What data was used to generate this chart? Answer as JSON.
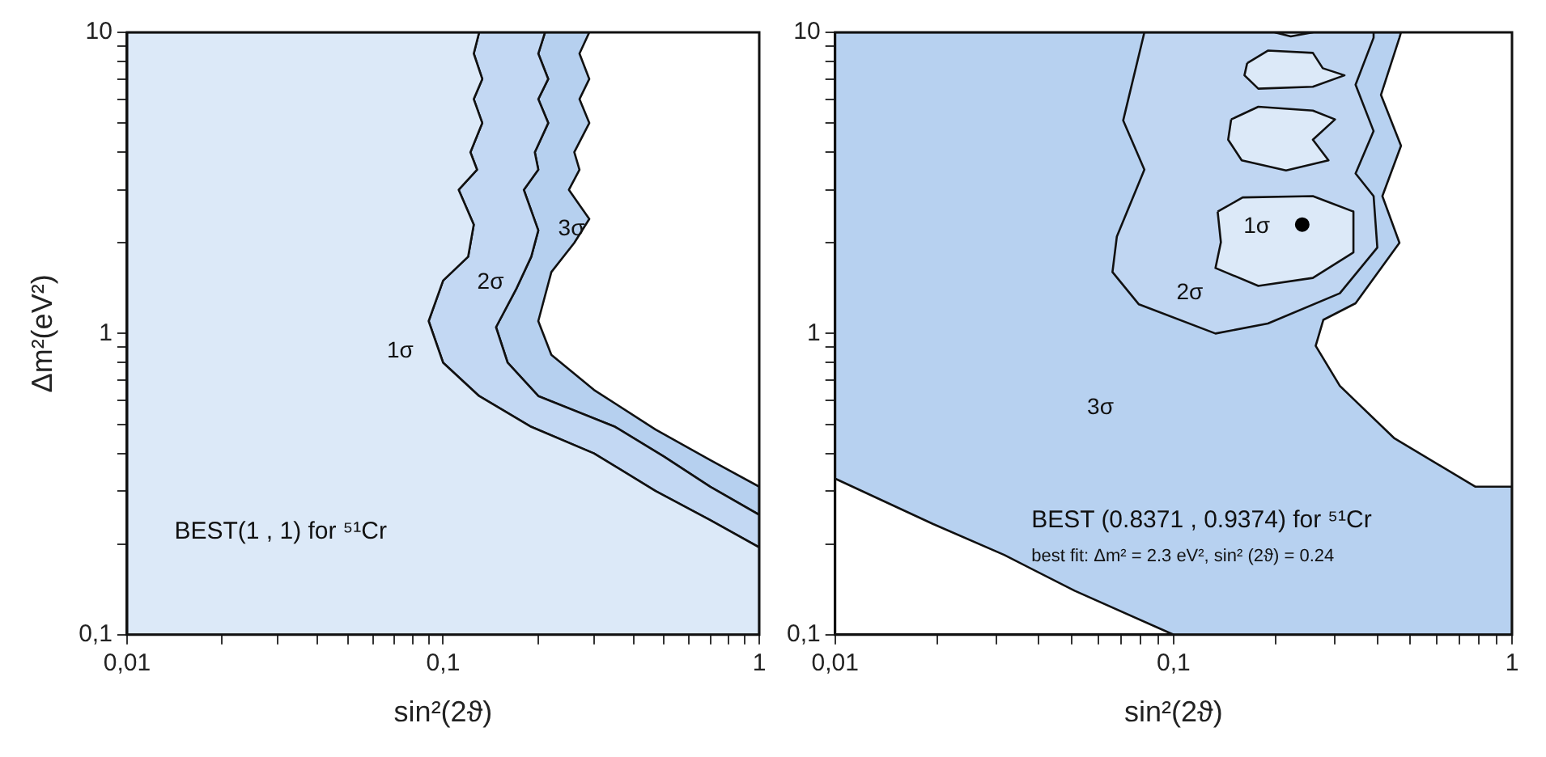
{
  "chart_data": [
    {
      "type": "area",
      "xlabel": "sin²(2ϑ)",
      "ylabel": "Δm²(eV²)",
      "log": "xy",
      "xlim": [
        0.01,
        1
      ],
      "ylim": [
        0.1,
        10
      ],
      "xticks": [
        {
          "value": 0.01,
          "label": "0,01"
        },
        {
          "value": 0.02,
          "label": null
        },
        {
          "value": 0.03,
          "label": null
        },
        {
          "value": 0.04,
          "label": null
        },
        {
          "value": 0.05,
          "label": null
        },
        {
          "value": 0.06,
          "label": null
        },
        {
          "value": 0.07,
          "label": null
        },
        {
          "value": 0.08,
          "label": null
        },
        {
          "value": 0.09,
          "label": null
        },
        {
          "value": 0.1,
          "label": "0,1"
        },
        {
          "value": 0.2,
          "label": null
        },
        {
          "value": 0.3,
          "label": null
        },
        {
          "value": 0.4,
          "label": null
        },
        {
          "value": 0.5,
          "label": null
        },
        {
          "value": 0.6,
          "label": null
        },
        {
          "value": 0.7,
          "label": null
        },
        {
          "value": 0.8,
          "label": null
        },
        {
          "value": 0.9,
          "label": null
        },
        {
          "value": 1,
          "label": "1"
        }
      ],
      "yticks": [
        {
          "value": 0.1,
          "label": "0,1"
        },
        {
          "value": 0.2,
          "label": null
        },
        {
          "value": 0.3,
          "label": null
        },
        {
          "value": 0.4,
          "label": null
        },
        {
          "value": 0.5,
          "label": null
        },
        {
          "value": 0.6,
          "label": null
        },
        {
          "value": 0.7,
          "label": null
        },
        {
          "value": 0.8,
          "label": null
        },
        {
          "value": 0.9,
          "label": null
        },
        {
          "value": 1,
          "label": "1"
        },
        {
          "value": 2,
          "label": null
        },
        {
          "value": 3,
          "label": null
        },
        {
          "value": 4,
          "label": null
        },
        {
          "value": 5,
          "label": null
        },
        {
          "value": 6,
          "label": null
        },
        {
          "value": 7,
          "label": null
        },
        {
          "value": 8,
          "label": null
        },
        {
          "value": 9,
          "label": null
        },
        {
          "value": 10,
          "label": "10"
        }
      ],
      "series": [
        {
          "color": "#b6d0ef",
          "x": [
            0.29,
            0.27,
            0.29,
            0.27,
            0.29,
            0.26,
            0.27,
            0.25,
            0.29,
            0.26,
            0.22,
            0.2,
            0.22,
            0.3,
            0.47,
            0.7,
            1,
            1,
            0.7,
            0.5,
            0.35,
            0.2,
            0.16,
            0.147,
            0.17,
            0.19,
            0.2,
            0.18,
            0.2,
            0.195,
            0.215,
            0.2,
            0.215,
            0.2,
            0.21,
            0.29
          ],
          "values": [
            10,
            8.5,
            7,
            6,
            5,
            4,
            3.5,
            3,
            2.4,
            2,
            1.6,
            1.1,
            0.85,
            0.65,
            0.48,
            0.38,
            0.31,
            0.25,
            0.31,
            0.39,
            0.49,
            0.62,
            0.8,
            1.05,
            1.4,
            1.8,
            2.2,
            3,
            3.5,
            4,
            5,
            6,
            7,
            8.5,
            10,
            10
          ]
        },
        {
          "color": "#c3d8f3",
          "x": [
            0.21,
            0.2,
            0.215,
            0.2,
            0.215,
            0.195,
            0.2,
            0.18,
            0.2,
            0.19,
            0.17,
            0.147,
            0.16,
            0.2,
            0.35,
            0.5,
            0.7,
            1,
            1,
            0.7,
            0.47,
            0.3,
            0.19,
            0.13,
            0.1,
            0.09,
            0.1,
            0.12,
            0.125,
            0.112,
            0.128,
            0.122,
            0.133,
            0.125,
            0.133,
            0.125,
            0.13,
            0.21
          ],
          "values": [
            10,
            8.5,
            7,
            6,
            5,
            4,
            3.5,
            3,
            2.2,
            1.8,
            1.4,
            1.05,
            0.8,
            0.62,
            0.49,
            0.39,
            0.31,
            0.25,
            0.195,
            0.24,
            0.3,
            0.4,
            0.49,
            0.62,
            0.8,
            1.1,
            1.5,
            1.8,
            2.3,
            3,
            3.5,
            4,
            5,
            6,
            7,
            8.5,
            10,
            10
          ]
        },
        {
          "color": "#dce9f8",
          "x": [
            0.13,
            0.125,
            0.133,
            0.125,
            0.133,
            0.122,
            0.128,
            0.112,
            0.125,
            0.12,
            0.1,
            0.09,
            0.1,
            0.13,
            0.19,
            0.3,
            0.47,
            0.7,
            1,
            1,
            0.01,
            0.01,
            0.13
          ],
          "values": [
            10,
            8.5,
            7,
            6,
            5,
            4,
            3.5,
            3,
            2.3,
            1.8,
            1.5,
            1.1,
            0.8,
            0.62,
            0.49,
            0.4,
            0.3,
            0.24,
            0.195,
            0.1,
            0.1,
            10,
            10
          ]
        }
      ],
      "annotations": [
        "1σ",
        "2σ",
        "3σ",
        "BEST(1 , 1) for ⁵¹Cr"
      ]
    },
    {
      "type": "area",
      "xlabel": "sin²(2ϑ)",
      "log": "xy",
      "xlim": [
        0.01,
        1
      ],
      "ylim": [
        0.1,
        10
      ],
      "xticks": [
        {
          "value": 0.01,
          "label": "0,01"
        },
        {
          "value": 0.02,
          "label": null
        },
        {
          "value": 0.03,
          "label": null
        },
        {
          "value": 0.04,
          "label": null
        },
        {
          "value": 0.05,
          "label": null
        },
        {
          "value": 0.06,
          "label": null
        },
        {
          "value": 0.07,
          "label": null
        },
        {
          "value": 0.08,
          "label": null
        },
        {
          "value": 0.09,
          "label": null
        },
        {
          "value": 0.1,
          "label": "0,1"
        },
        {
          "value": 0.2,
          "label": null
        },
        {
          "value": 0.3,
          "label": null
        },
        {
          "value": 0.4,
          "label": null
        },
        {
          "value": 0.5,
          "label": null
        },
        {
          "value": 0.6,
          "label": null
        },
        {
          "value": 0.7,
          "label": null
        },
        {
          "value": 0.8,
          "label": null
        },
        {
          "value": 0.9,
          "label": null
        },
        {
          "value": 1,
          "label": "1"
        }
      ],
      "yticks": [
        {
          "value": 0.1,
          "label": "0,1"
        },
        {
          "value": 0.2,
          "label": null
        },
        {
          "value": 0.3,
          "label": null
        },
        {
          "value": 0.4,
          "label": null
        },
        {
          "value": 0.5,
          "label": null
        },
        {
          "value": 0.6,
          "label": null
        },
        {
          "value": 0.7,
          "label": null
        },
        {
          "value": 0.8,
          "label": null
        },
        {
          "value": 0.9,
          "label": null
        },
        {
          "value": 1,
          "label": "1"
        },
        {
          "value": 2,
          "label": null
        },
        {
          "value": 3,
          "label": null
        },
        {
          "value": 4,
          "label": null
        },
        {
          "value": 5,
          "label": null
        },
        {
          "value": 6,
          "label": null
        },
        {
          "value": 7,
          "label": null
        },
        {
          "value": 8,
          "label": null
        },
        {
          "value": 9,
          "label": null
        },
        {
          "value": 10,
          "label": "10"
        }
      ],
      "series": [
        {
          "color": "#b7d1f0",
          "x": [
            0.01,
            0.01,
            0.0195,
            0.0316,
            0.051,
            0.1,
            1,
            1,
            0.78,
            0.448,
            0.31,
            0.263,
            0.277,
            0.345,
            0.465,
            0.414,
            0.47,
            0.41,
            0.465,
            0.47,
            0.01
          ],
          "values": [
            10,
            0.33,
            0.233,
            0.184,
            0.14,
            0.1,
            0.1,
            0.31,
            0.31,
            0.45,
            0.67,
            0.91,
            1.11,
            1.26,
            2.0,
            2.86,
            4.2,
            6.2,
            9.6,
            10,
            10
          ]
        },
        {
          "color": "#c0d6f2",
          "x": [
            0.082,
            0.071,
            0.082,
            0.068,
            0.066,
            0.079,
            0.133,
            0.19,
            0.31,
            0.4,
            0.39,
            0.345,
            0.39,
            0.345,
            0.39,
            0.39,
            0.082
          ],
          "values": [
            10,
            5.1,
            3.5,
            2.1,
            1.6,
            1.25,
            1.0,
            1.08,
            1.36,
            1.93,
            2.86,
            3.4,
            4.7,
            6.7,
            9.6,
            10,
            10
          ]
        },
        {
          "color": "#dce9f8",
          "x": [
            0.135,
            0.16,
            0.258,
            0.34,
            0.34,
            0.258,
            0.178,
            0.133,
            0.138,
            0.135
          ],
          "values": [
            2.54,
            2.83,
            2.86,
            2.54,
            1.86,
            1.53,
            1.44,
            1.65,
            2.01,
            2.54
          ]
        },
        {
          "color": "#dce9f8",
          "x": [
            0.148,
            0.178,
            0.258,
            0.3,
            0.258,
            0.287,
            0.215,
            0.159,
            0.145,
            0.148
          ],
          "values": [
            5.14,
            5.66,
            5.5,
            5.14,
            4.4,
            3.76,
            3.48,
            3.76,
            4.4,
            5.14
          ]
        },
        {
          "color": "#dce9f8",
          "x": [
            0.165,
            0.19,
            0.258,
            0.276,
            0.32,
            0.258,
            0.178,
            0.162,
            0.165
          ],
          "values": [
            7.9,
            8.7,
            8.55,
            7.6,
            7.2,
            6.6,
            6.5,
            7.2,
            7.9
          ]
        },
        {
          "color": "#dce9f8",
          "x": [
            0.199,
            0.222,
            0.258,
            0.199
          ],
          "values": [
            10,
            9.7,
            10,
            10
          ]
        },
        {
          "type": "scatter",
          "marker": "circle",
          "color": "#000000",
          "x": [
            0.24
          ],
          "values": [
            2.3
          ]
        }
      ],
      "annotations": [
        "1σ",
        "2σ",
        "3σ",
        "BEST (0.8371 , 0.9374) for ⁵¹Cr",
        "best fit: Δm² = 2.3 eV², sin² (2ϑ) = 0.24"
      ]
    }
  ]
}
